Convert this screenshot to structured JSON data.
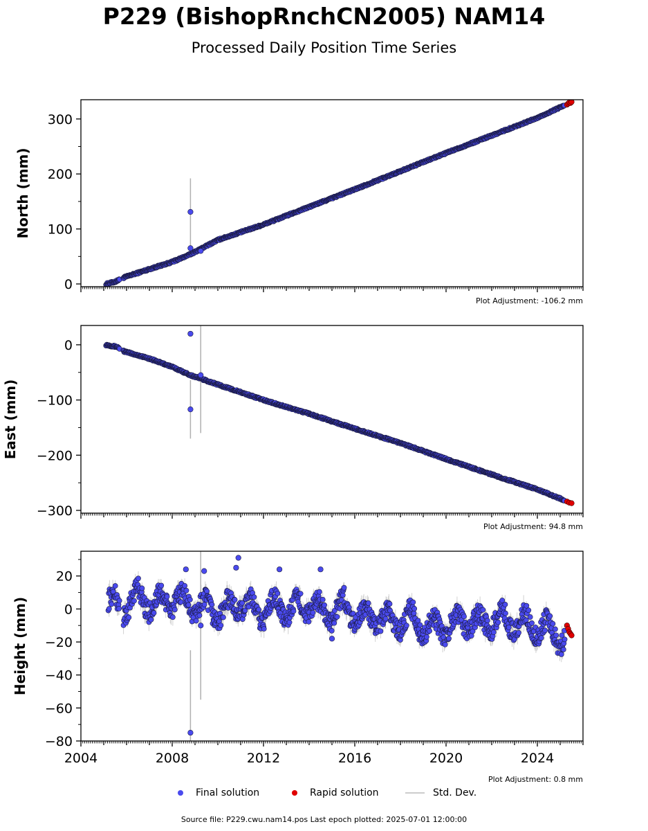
{
  "title": "P229 (BishopRnchCN2005) NAM14",
  "subtitle": "Processed Daily Position Time Series",
  "source": "Source file: P229.cwu.nam14.pos  Last epoch plotted: 2025-07-01 12:00:00",
  "legend": {
    "final": "Final solution",
    "rapid": "Rapid solution",
    "std": "Std. Dev."
  },
  "colors": {
    "final_fill": "#4a4aee",
    "final_edge": "#1a1a40",
    "rapid": "#e00000",
    "std": "#b0b0b0"
  },
  "chart_data": [
    {
      "type": "scatter",
      "ylabel": "North (mm)",
      "adjustment": "Plot Adjustment: -106.2 mm",
      "xlim": [
        2004,
        2026
      ],
      "ylim": [
        -5,
        335
      ],
      "yticks": [
        0,
        100,
        200,
        300
      ],
      "ytick_labels": [
        "0",
        "100",
        "200",
        "300"
      ],
      "xticks": [
        2004,
        2008,
        2012,
        2016,
        2020,
        2024
      ],
      "xtick_labels": [],
      "series": [
        {
          "name": "Final solution",
          "x": [
            2005.1,
            2005.5,
            2005.9,
            2007.0,
            2008.0,
            2008.8,
            2010.0,
            2012.0,
            2014.0,
            2016.0,
            2018.0,
            2020.0,
            2022.0,
            2024.0,
            2025.2
          ],
          "y": [
            0,
            4,
            12,
            27,
            40,
            54,
            80,
            108,
            140,
            172,
            205,
            238,
            270,
            302,
            325
          ]
        },
        {
          "name": "Rapid solution",
          "x": [
            2025.3,
            2025.35,
            2025.4,
            2025.45,
            2025.5
          ],
          "y": [
            326,
            328,
            330,
            329,
            331
          ]
        }
      ],
      "outliers": [
        {
          "x": 2008.8,
          "y": 131,
          "err": 61
        },
        {
          "x": 2008.8,
          "y": 65,
          "err": 0
        },
        {
          "x": 2009.25,
          "y": 60,
          "err": 0
        }
      ]
    },
    {
      "type": "scatter",
      "ylabel": "East (mm)",
      "adjustment": "Plot Adjustment: 94.8 mm",
      "xlim": [
        2004,
        2026
      ],
      "ylim": [
        -305,
        35
      ],
      "yticks": [
        0,
        -100,
        -200,
        -300
      ],
      "ytick_labels": [
        "0",
        "−100",
        "−200",
        "−300"
      ],
      "xticks": [
        2004,
        2008,
        2012,
        2016,
        2020,
        2024
      ],
      "xtick_labels": [],
      "series": [
        {
          "name": "Final solution",
          "x": [
            2005.1,
            2005.6,
            2005.9,
            2007.0,
            2008.0,
            2008.8,
            2010.0,
            2012.0,
            2014.0,
            2016.0,
            2018.0,
            2020.0,
            2022.0,
            2024.0,
            2025.2
          ],
          "y": [
            0,
            -4,
            -12,
            -25,
            -40,
            -55,
            -72,
            -100,
            -125,
            -152,
            -178,
            -207,
            -235,
            -262,
            -282
          ]
        },
        {
          "name": "Rapid solution",
          "x": [
            2025.3,
            2025.4,
            2025.5
          ],
          "y": [
            -284,
            -286,
            -287
          ]
        }
      ],
      "outliers": [
        {
          "x": 2008.8,
          "y": 20,
          "err": 0
        },
        {
          "x": 2008.8,
          "y": -117,
          "err": 53
        },
        {
          "x": 2009.25,
          "y": -55,
          "err": 105
        }
      ]
    },
    {
      "type": "scatter",
      "ylabel": "Height (mm)",
      "adjustment": "Plot Adjustment: 0.8 mm",
      "xlim": [
        2004,
        2026
      ],
      "ylim": [
        -80,
        35
      ],
      "yticks": [
        20,
        0,
        -20,
        -40,
        -60,
        -80
      ],
      "ytick_labels": [
        "20",
        "0",
        "−20",
        "−40",
        "−60",
        "−80"
      ],
      "xticks": [
        2004,
        2008,
        2012,
        2016,
        2020,
        2024
      ],
      "xtick_labels": [
        "2004",
        "2008",
        "2012",
        "2016",
        "2020",
        "2024"
      ],
      "series": [
        {
          "name": "Final solution",
          "x": [
            2005.2,
            2005.8,
            2006.5,
            2007.2,
            2008.0,
            2008.8,
            2009.5,
            2010.2,
            2011.0,
            2011.8,
            2012.5,
            2013.2,
            2014.0,
            2014.8,
            2015.5,
            2016.2,
            2017.0,
            2017.8,
            2018.5,
            2019.2,
            2020.0,
            2020.8,
            2021.5,
            2022.2,
            2023.0,
            2023.8,
            2024.5,
            2025.2
          ],
          "y": [
            5,
            0,
            8,
            2,
            6,
            3,
            0,
            -2,
            4,
            -3,
            2,
            -1,
            3,
            -4,
            2,
            -5,
            -6,
            -8,
            -6,
            -12,
            -10,
            -7,
            -9,
            -6,
            -8,
            -10,
            -12,
            -18
          ]
        },
        {
          "name": "Rapid solution",
          "x": [
            2025.3,
            2025.35,
            2025.4,
            2025.45,
            2025.5
          ],
          "y": [
            -10,
            -12,
            -14,
            -15,
            -16
          ]
        }
      ],
      "outliers": [
        {
          "x": 2008.8,
          "y": -75,
          "err": 50
        },
        {
          "x": 2009.25,
          "y": -10,
          "err": 45
        },
        {
          "x": 2010.9,
          "y": 31,
          "err": 0
        },
        {
          "x": 2010.8,
          "y": 25,
          "err": 0
        },
        {
          "x": 2012.7,
          "y": 24,
          "err": 0
        },
        {
          "x": 2014.5,
          "y": 24,
          "err": 0
        },
        {
          "x": 2009.4,
          "y": 23,
          "err": 0
        },
        {
          "x": 2015.0,
          "y": -18,
          "err": 0
        },
        {
          "x": 2008.6,
          "y": 24,
          "err": 0
        }
      ]
    }
  ]
}
